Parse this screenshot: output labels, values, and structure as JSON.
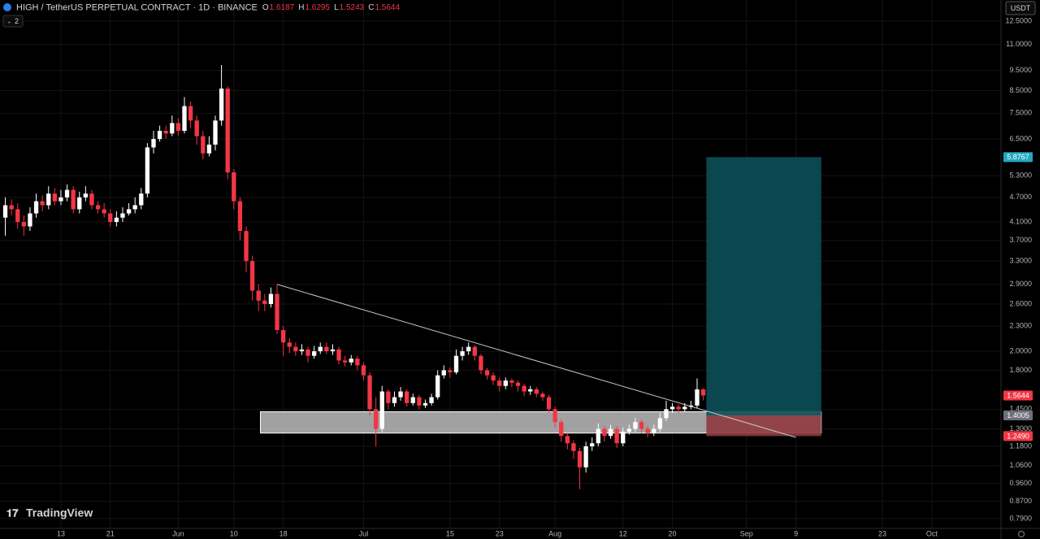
{
  "chart_data": {
    "type": "candlestick",
    "title": "HIGH / TetherUS PERPETUAL CONTRACT · 1D · BINANCE",
    "ohlc_letters": [
      "O",
      "H",
      "L",
      "C"
    ],
    "indicator_badge": "2",
    "currency": "USDT",
    "brand": "TradingView",
    "up_color": "#ffffff",
    "down_color": "#f23645",
    "log_scale": true,
    "grid": true,
    "open": [
      4.2,
      4.5,
      4.4,
      4.1,
      4.0,
      4.3,
      4.6,
      4.5,
      4.8,
      4.6,
      4.7,
      4.9,
      4.4,
      4.7,
      4.8,
      4.5,
      4.4,
      4.3,
      4.1,
      4.2,
      4.3,
      4.4,
      4.5,
      4.8,
      6.2,
      6.5,
      6.8,
      6.7,
      7.1,
      6.8,
      7.8,
      7.2,
      6.6,
      6.0,
      6.3,
      7.2,
      8.6,
      5.4,
      4.6,
      3.9,
      3.3,
      2.8,
      2.65,
      2.6,
      2.75,
      2.25,
      2.1,
      2.05,
      2.0,
      2.02,
      1.95,
      2.0,
      2.05,
      2.0,
      2.02,
      1.9,
      1.88,
      1.92,
      1.85,
      1.75,
      1.45,
      1.3,
      1.6,
      1.5,
      1.55,
      1.6,
      1.5,
      1.55,
      1.48,
      1.5,
      1.55,
      1.75,
      1.8,
      1.78,
      1.95,
      2.0,
      2.05,
      1.95,
      1.8,
      1.75,
      1.7,
      1.65,
      1.7,
      1.68,
      1.65,
      1.6,
      1.62,
      1.58,
      1.55,
      1.45,
      1.35,
      1.25,
      1.2,
      1.15,
      1.05,
      1.18,
      1.2,
      1.3,
      1.25,
      1.3,
      1.2,
      1.28,
      1.3,
      1.35,
      1.3,
      1.27,
      1.3,
      1.38,
      1.45,
      1.47,
      1.45,
      1.47,
      1.48,
      1.6187
    ],
    "high": [
      4.7,
      4.65,
      4.55,
      4.25,
      4.45,
      4.8,
      4.75,
      5.0,
      4.95,
      4.9,
      5.05,
      5.0,
      4.85,
      5.0,
      4.9,
      4.6,
      4.55,
      4.4,
      4.35,
      4.45,
      4.55,
      4.7,
      4.95,
      6.35,
      6.8,
      7.0,
      7.0,
      7.4,
      7.3,
      8.2,
      8.0,
      7.4,
      6.8,
      6.6,
      7.4,
      9.8,
      8.7,
      5.5,
      4.7,
      4.0,
      3.4,
      2.9,
      2.75,
      2.85,
      2.9,
      2.3,
      2.15,
      2.1,
      2.08,
      2.05,
      2.06,
      2.1,
      2.1,
      2.08,
      2.05,
      1.95,
      1.96,
      1.95,
      1.88,
      1.78,
      1.55,
      1.65,
      1.62,
      1.6,
      1.64,
      1.62,
      1.58,
      1.57,
      1.53,
      1.58,
      1.8,
      1.85,
      1.83,
      2.02,
      2.05,
      2.1,
      2.07,
      1.97,
      1.82,
      1.78,
      1.73,
      1.73,
      1.72,
      1.7,
      1.67,
      1.65,
      1.64,
      1.6,
      1.57,
      1.47,
      1.37,
      1.27,
      1.22,
      1.17,
      1.21,
      1.24,
      1.34,
      1.32,
      1.33,
      1.32,
      1.31,
      1.33,
      1.38,
      1.37,
      1.32,
      1.33,
      1.42,
      1.52,
      1.5,
      1.49,
      1.5,
      1.52,
      1.72,
      1.6295
    ],
    "low": [
      3.8,
      4.25,
      3.95,
      3.8,
      3.9,
      4.2,
      4.35,
      4.4,
      4.5,
      4.5,
      4.6,
      4.3,
      4.3,
      4.6,
      4.4,
      4.3,
      4.2,
      4.0,
      4.0,
      4.1,
      4.25,
      4.3,
      4.4,
      4.7,
      6.0,
      6.4,
      6.5,
      6.6,
      6.6,
      6.7,
      6.9,
      6.3,
      5.8,
      5.9,
      6.1,
      7.0,
      5.2,
      4.4,
      3.7,
      3.1,
      2.65,
      2.5,
      2.5,
      2.55,
      2.2,
      1.95,
      1.98,
      1.95,
      1.96,
      1.88,
      1.92,
      1.97,
      1.97,
      1.96,
      1.86,
      1.84,
      1.85,
      1.8,
      1.7,
      1.4,
      1.18,
      1.28,
      1.45,
      1.47,
      1.52,
      1.47,
      1.48,
      1.45,
      1.46,
      1.48,
      1.53,
      1.72,
      1.73,
      1.76,
      1.9,
      1.96,
      1.9,
      1.76,
      1.71,
      1.66,
      1.6,
      1.62,
      1.64,
      1.6,
      1.56,
      1.57,
      1.55,
      1.52,
      1.42,
      1.31,
      1.21,
      1.16,
      1.1,
      0.93,
      1.02,
      1.15,
      1.18,
      1.21,
      1.23,
      1.17,
      1.18,
      1.26,
      1.28,
      1.27,
      1.24,
      1.25,
      1.28,
      1.36,
      1.42,
      1.42,
      1.43,
      1.45,
      1.46,
      1.5243
    ],
    "close": [
      4.5,
      4.4,
      4.1,
      4.0,
      4.3,
      4.6,
      4.5,
      4.8,
      4.6,
      4.7,
      4.9,
      4.4,
      4.7,
      4.8,
      4.5,
      4.4,
      4.3,
      4.1,
      4.2,
      4.3,
      4.4,
      4.5,
      4.8,
      6.2,
      6.5,
      6.8,
      6.7,
      7.1,
      6.8,
      7.8,
      7.2,
      6.6,
      6.0,
      6.3,
      7.2,
      8.6,
      5.4,
      4.6,
      3.9,
      3.3,
      2.8,
      2.65,
      2.6,
      2.75,
      2.25,
      2.1,
      2.05,
      2.0,
      2.02,
      1.95,
      2.0,
      2.05,
      2.0,
      2.02,
      1.9,
      1.88,
      1.92,
      1.85,
      1.75,
      1.45,
      1.3,
      1.6,
      1.5,
      1.55,
      1.6,
      1.5,
      1.55,
      1.48,
      1.5,
      1.55,
      1.75,
      1.8,
      1.78,
      1.95,
      2.0,
      2.05,
      1.95,
      1.8,
      1.75,
      1.7,
      1.65,
      1.7,
      1.68,
      1.65,
      1.6,
      1.62,
      1.58,
      1.55,
      1.45,
      1.35,
      1.25,
      1.2,
      1.15,
      1.05,
      1.18,
      1.2,
      1.3,
      1.25,
      1.3,
      1.2,
      1.28,
      1.3,
      1.35,
      1.3,
      1.27,
      1.3,
      1.38,
      1.45,
      1.47,
      1.45,
      1.47,
      1.48,
      1.6187,
      1.5644
    ],
    "xlim": [
      -0.86,
      161.2
    ],
    "xticks": [
      {
        "value": 9,
        "label": "13"
      },
      {
        "value": 17,
        "label": "21"
      },
      {
        "value": 28,
        "label": "Jun"
      },
      {
        "value": 37,
        "label": "10"
      },
      {
        "value": 45,
        "label": "18"
      },
      {
        "value": 58,
        "label": "Jul"
      },
      {
        "value": 72,
        "label": "15"
      },
      {
        "value": 80,
        "label": "23"
      },
      {
        "value": 89,
        "label": "Aug"
      },
      {
        "value": 100,
        "label": "12"
      },
      {
        "value": 108,
        "label": "20"
      },
      {
        "value": 120,
        "label": "Sep"
      },
      {
        "value": 128,
        "label": "9"
      },
      {
        "value": 142,
        "label": "23"
      },
      {
        "value": 150,
        "label": "Oct"
      }
    ],
    "ylim": [
      0.748,
      14.06
    ],
    "yticks": [
      {
        "value": 12.5,
        "label": "12.5000"
      },
      {
        "value": 11,
        "label": "11.0000"
      },
      {
        "value": 9.5,
        "label": "9.5000"
      },
      {
        "value": 8.5,
        "label": "8.5000"
      },
      {
        "value": 7.5,
        "label": "7.5000"
      },
      {
        "value": 6.5,
        "label": "6.5000"
      },
      {
        "value": 5.3,
        "label": "5.3000"
      },
      {
        "value": 4.7,
        "label": "4.7000"
      },
      {
        "value": 4.1,
        "label": "4.1000"
      },
      {
        "value": 3.7,
        "label": "3.7000"
      },
      {
        "value": 3.3,
        "label": "3.3000"
      },
      {
        "value": 2.9,
        "label": "2.9000"
      },
      {
        "value": 2.6,
        "label": "2.6000"
      },
      {
        "value": 2.3,
        "label": "2.3000"
      },
      {
        "value": 2.0,
        "label": "2.0000"
      },
      {
        "value": 1.8,
        "label": "1.8000"
      },
      {
        "value": 1.45,
        "label": "1.4500"
      },
      {
        "value": 1.3,
        "label": "1.3000"
      },
      {
        "value": 1.18,
        "label": "1.1800"
      },
      {
        "value": 1.06,
        "label": "1.0600"
      },
      {
        "value": 0.96,
        "label": "0.9600"
      },
      {
        "value": 0.87,
        "label": "0.8700"
      },
      {
        "value": 0.79,
        "label": "0.7900"
      }
    ],
    "trendline": {
      "x": [
        44,
        128
      ],
      "y": [
        2.9,
        1.24
      ],
      "color": "#c8c8c8"
    },
    "zone": {
      "x": [
        41.3,
        132.1
      ],
      "y": [
        1.27,
        1.43
      ],
      "color": "#bdbdbd"
    },
    "position": {
      "x": [
        113.5,
        132.1
      ],
      "target": {
        "value": 5.8767,
        "label": "5.8767"
      },
      "entry": {
        "value": 1.4005,
        "label": "1.4005"
      },
      "stop": {
        "value": 1.249,
        "label": "1.2490"
      },
      "target_color": "#0b4f57",
      "stop_color": "#8e3a40",
      "entry_color": "#6e7079",
      "target_label_color": "#22a9c1"
    }
  }
}
